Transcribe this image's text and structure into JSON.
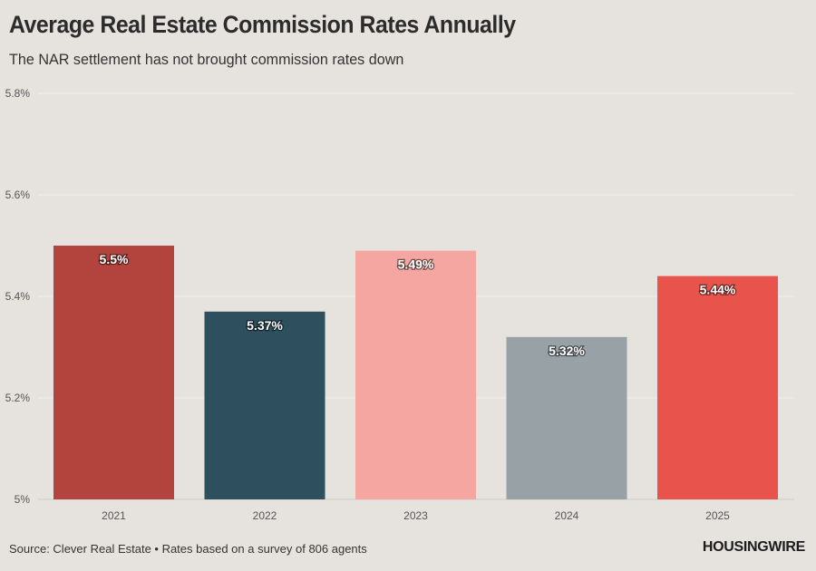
{
  "header": {
    "title": "Average Real Estate Commission Rates Annually",
    "subtitle": "The NAR settlement has not brought commission rates down"
  },
  "footer": {
    "source": "Source: Clever Real Estate • Rates based on a survey of 806 agents",
    "brand": "HOUSINGWIRE"
  },
  "chart_data": {
    "type": "bar",
    "title": "Average Real Estate Commission Rates Annually",
    "subtitle": "The NAR settlement has not brought commission rates down",
    "xlabel": "",
    "ylabel": "",
    "categories": [
      "2021",
      "2022",
      "2023",
      "2024",
      "2025"
    ],
    "values": [
      5.5,
      5.37,
      5.49,
      5.32,
      5.44
    ],
    "data_labels": [
      "5.5%",
      "5.37%",
      "5.49%",
      "5.32%",
      "5.44%"
    ],
    "colors": [
      "#b3433d",
      "#2d4f5e",
      "#f6a6a0",
      "#98a2a6",
      "#e8544b"
    ],
    "ylim": [
      5.0,
      5.8
    ],
    "yticks": [
      5.0,
      5.2,
      5.4,
      5.6,
      5.8
    ],
    "ytick_labels": [
      "5%",
      "5.2%",
      "5.4%",
      "5.6%",
      "5.8%"
    ],
    "grid": true,
    "legend": "none"
  }
}
